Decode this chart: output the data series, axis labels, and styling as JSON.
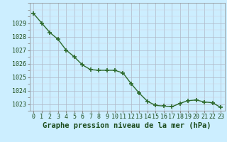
{
  "x": [
    0,
    1,
    2,
    3,
    4,
    5,
    6,
    7,
    8,
    9,
    10,
    11,
    12,
    13,
    14,
    15,
    16,
    17,
    18,
    19,
    20,
    21,
    22,
    23
  ],
  "y": [
    1029.7,
    1029.0,
    1028.3,
    1027.8,
    1027.0,
    1026.5,
    1025.9,
    1025.55,
    1025.5,
    1025.5,
    1025.5,
    1025.3,
    1024.5,
    1023.8,
    1023.2,
    1022.9,
    1022.85,
    1022.8,
    1023.05,
    1023.25,
    1023.3,
    1023.15,
    1023.1,
    1022.75
  ],
  "line_color": "#2d6a2d",
  "marker": "+",
  "marker_size": 4,
  "marker_linewidth": 1.2,
  "line_width": 1.0,
  "bg_color": "#cceeff",
  "grid_major_color": "#b0b8c8",
  "grid_minor_color": "#d4d0dc",
  "xlabel": "Graphe pression niveau de la mer (hPa)",
  "xlabel_color": "#1a4a1a",
  "xlabel_fontsize": 7.5,
  "tick_color": "#1a4a1a",
  "tick_fontsize": 6,
  "ylim": [
    1022.5,
    1030.5
  ],
  "yticks": [
    1023,
    1024,
    1025,
    1026,
    1027,
    1028,
    1029
  ],
  "xlim": [
    -0.5,
    23.5
  ],
  "xticks": [
    0,
    1,
    2,
    3,
    4,
    5,
    6,
    7,
    8,
    9,
    10,
    11,
    12,
    13,
    14,
    15,
    16,
    17,
    18,
    19,
    20,
    21,
    22,
    23
  ]
}
